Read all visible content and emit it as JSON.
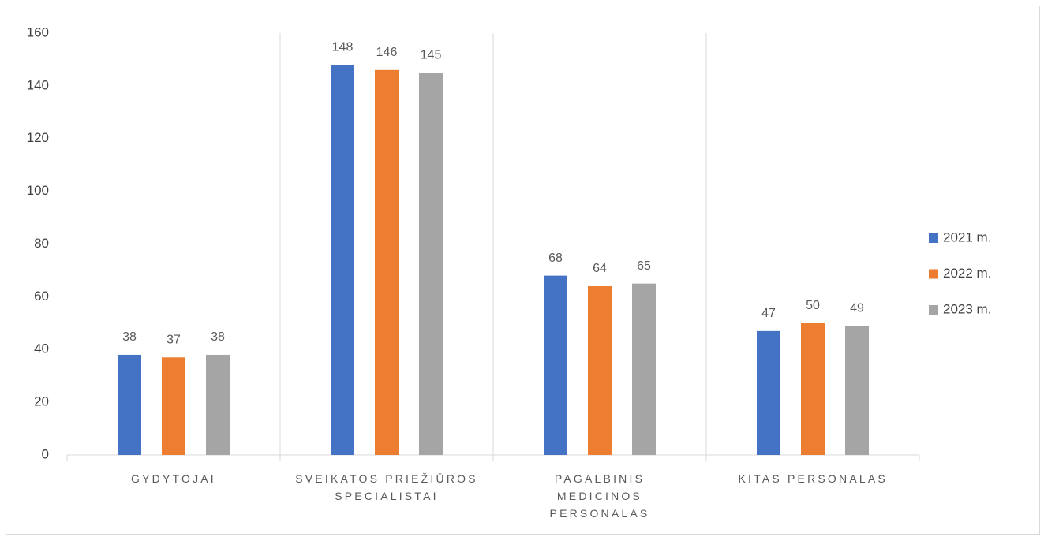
{
  "chart_data": {
    "type": "bar",
    "categories": [
      "GYDYTOJAI",
      "SVEIKATOS PRIEŽIŪROS SPECIALISTAI",
      "PAGALBINIS MEDICINOS PERSONALAS",
      "KITAS PERSONALAS"
    ],
    "series": [
      {
        "name": "2021 m.",
        "color": "#4472c4",
        "values": [
          38,
          148,
          68,
          47
        ]
      },
      {
        "name": "2022 m.",
        "color": "#ed7d31",
        "values": [
          37,
          146,
          64,
          50
        ]
      },
      {
        "name": "2023 m.",
        "color": "#a5a5a5",
        "values": [
          38,
          145,
          65,
          49
        ]
      }
    ],
    "ylim": [
      0,
      160
    ],
    "yticks": [
      0,
      20,
      40,
      60,
      80,
      100,
      120,
      140,
      160
    ],
    "legend": "right",
    "data_labels": true
  }
}
